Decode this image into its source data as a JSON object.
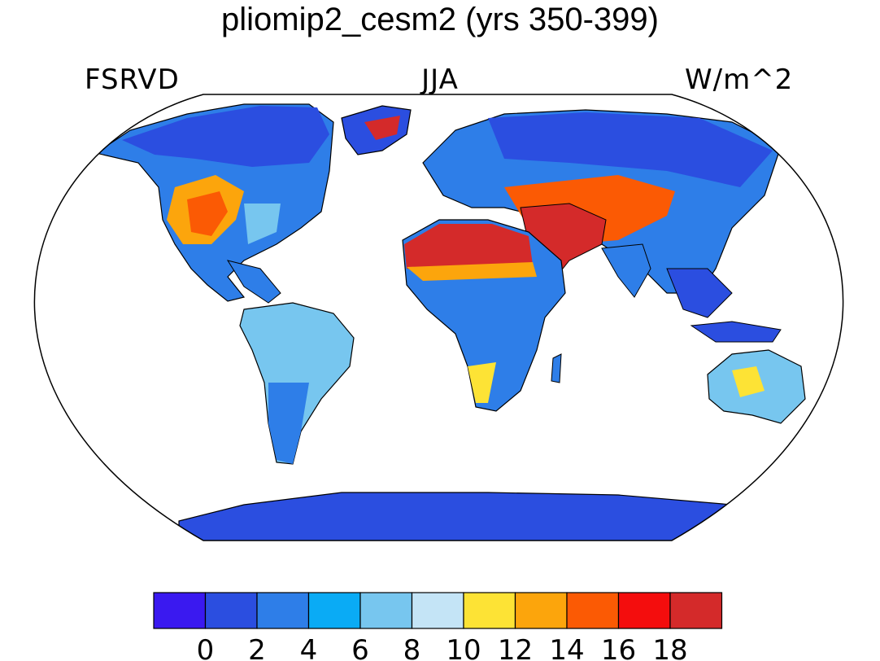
{
  "title": "pliomip2_cesm2 (yrs 350-399)",
  "labels": {
    "left": "FSRVD",
    "center": "JJA",
    "right": "W/m^2"
  },
  "colorbar": {
    "colors": [
      "#3a19f0",
      "#2b4ee0",
      "#2e7ee8",
      "#0aabf5",
      "#77c6ef",
      "#c4e4f6",
      "#fde335",
      "#fca50c",
      "#fb5a04",
      "#f40d0d",
      "#d42a2a"
    ],
    "tick_labels": [
      "0",
      "2",
      "4",
      "6",
      "8",
      "10",
      "12",
      "14",
      "16",
      "18"
    ]
  },
  "map": {
    "projection": "Robinson",
    "ocean_color": "#ffffff"
  }
}
